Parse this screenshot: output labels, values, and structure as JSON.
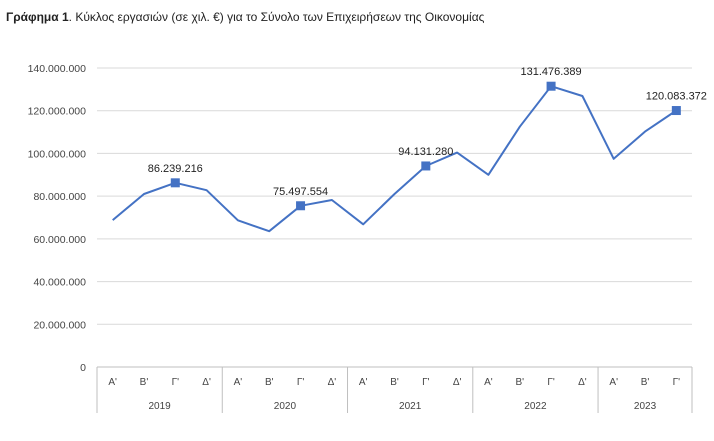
{
  "title": {
    "bold": "Γράφημα 1",
    "rest": ". Κύκλος εργασιών (σε χιλ. €) για το Σύνολο των Επιχειρήσεων της Οικονομίας"
  },
  "colors": {
    "line": "#4472C4",
    "grid": "#d9d9d9",
    "axis": "#bfbfbf"
  },
  "chart_data": {
    "type": "line",
    "title": "Γράφημα 1. Κύκλος εργασιών (σε χιλ. €) για το Σύνολο των Επιχειρήσεων της Οικονομίας",
    "ylim": [
      0,
      140000000
    ],
    "yticks": [
      0,
      20000000,
      40000000,
      60000000,
      80000000,
      100000000,
      120000000,
      140000000
    ],
    "ytick_labels": [
      "0",
      "20.000.000",
      "40.000.000",
      "60.000.000",
      "80.000.000",
      "100.000.000",
      "120.000.000",
      "140.000.000"
    ],
    "grid": true,
    "legend": "none",
    "years": [
      "2019",
      "2020",
      "2021",
      "2022",
      "2023"
    ],
    "quarters": [
      "Α'",
      "Β'",
      "Γ'",
      "Δ'",
      "Α'",
      "Β'",
      "Γ'",
      "Δ'",
      "Α'",
      "Β'",
      "Γ'",
      "Δ'",
      "Α'",
      "Β'",
      "Γ'",
      "Δ'",
      "Α'",
      "Β'",
      "Γ'"
    ],
    "year_groups": [
      4,
      4,
      4,
      4,
      3
    ],
    "values": [
      68800000,
      81000000,
      86239216,
      82800000,
      68700000,
      63600000,
      75497554,
      78200000,
      66800000,
      81000000,
      94131280,
      100400000,
      90000000,
      112500000,
      131476389,
      126900000,
      97500000,
      110200000,
      120083372
    ],
    "markers": [
      2,
      6,
      10,
      14,
      18
    ],
    "data_labels": [
      "86.239.216",
      "75.497.554",
      "94.131.280",
      "131.476.389",
      "120.083.372"
    ]
  }
}
